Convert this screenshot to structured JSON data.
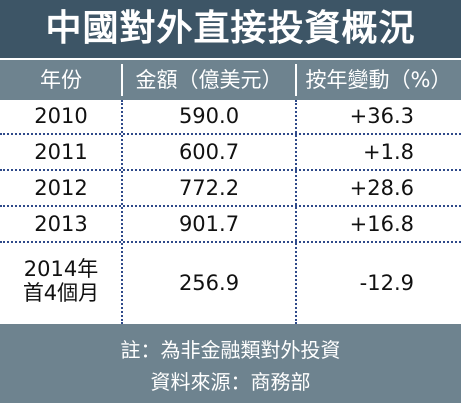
{
  "title": "中國對外直接投資概況",
  "headers": {
    "year": "年份",
    "amount": "金額（億美元）",
    "change": "按年變動（%）"
  },
  "chart_data": {
    "type": "table",
    "rows": [
      {
        "year": "2010",
        "amount": "590.0",
        "change": "+36.3"
      },
      {
        "year": "2011",
        "amount": "600.7",
        "change": "+1.8"
      },
      {
        "year": "2012",
        "amount": "772.2",
        "change": "+28.6"
      },
      {
        "year": "2013",
        "amount": "901.7",
        "change": "+16.8"
      },
      {
        "year_line1": "2014年",
        "year_line2": "首4個月",
        "amount": "256.9",
        "change": "-12.9"
      }
    ]
  },
  "footer": {
    "note": "註：為非金融類對外投資",
    "source": "資料來源：商務部"
  },
  "colors": {
    "title_bg": "#3d5566",
    "header_bg": "#6e838f",
    "divider": "#2f4a8a"
  }
}
